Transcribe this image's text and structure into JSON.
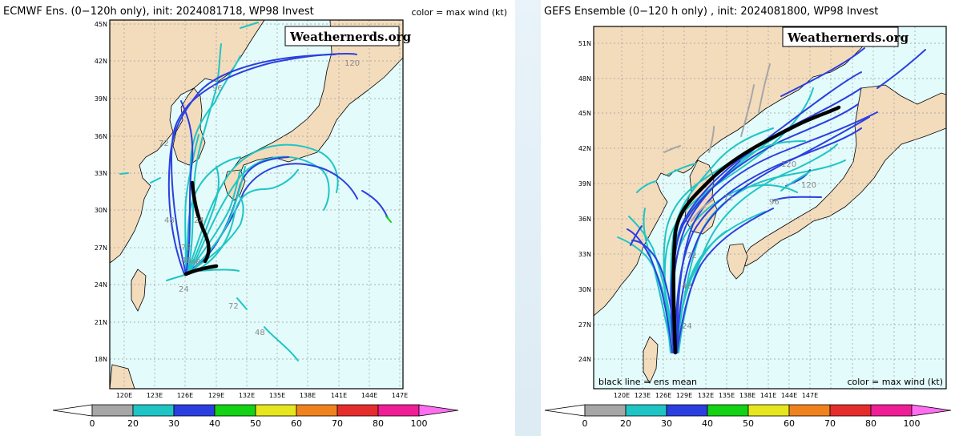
{
  "left": {
    "title": "ECMWF Ens. (0−120h only), init: 2024081718, WP98 Invest",
    "color_label": "color = max wind (kt)",
    "watermark": "Weathernerds.org",
    "lat_labels": [
      "45N",
      "42N",
      "39N",
      "36N",
      "33N",
      "30N",
      "27N",
      "24N",
      "21N",
      "18N"
    ],
    "lon_labels": [
      "120E",
      "123E",
      "126E",
      "129E",
      "132E",
      "135E",
      "138E",
      "141E",
      "144E",
      "147E"
    ],
    "track_labels": [
      "96",
      "72",
      "48",
      "24",
      "72",
      "48",
      "24",
      "48",
      "72",
      "48",
      "120"
    ]
  },
  "right": {
    "title": "GEFS Ensemble (0−120 h only) , init: 2024081800, WP98 Invest",
    "watermark": "Weathernerds.org",
    "note_left": "black line = ens mean",
    "note_right": "color = max wind (kt)",
    "lat_labels": [
      "51N",
      "48N",
      "45N",
      "42N",
      "39N",
      "36N",
      "33N",
      "30N",
      "27N",
      "24N"
    ],
    "lon_labels": [
      "120E",
      "123E",
      "126E",
      "129E",
      "132E",
      "135E",
      "138E",
      "141E",
      "144E",
      "147E"
    ],
    "track_labels": [
      "120",
      "96",
      "120",
      "72",
      "72",
      "48",
      "24"
    ]
  },
  "colorbar": {
    "ticks": [
      "0",
      "20",
      "30",
      "40",
      "50",
      "60",
      "70",
      "80",
      "100"
    ],
    "colors": [
      "#a6a6a6",
      "#1fc5c5",
      "#2b3fe0",
      "#14d214",
      "#e6e61e",
      "#f0821e",
      "#e62d2d",
      "#f01e96"
    ],
    "end_low": "#ffffff",
    "end_high": "#ff6ef0"
  },
  "colors": {
    "ocean": "#e3fbfb",
    "land": "#f3dcbc",
    "grid": "#9a9a9a",
    "mean_track": "#000000"
  }
}
